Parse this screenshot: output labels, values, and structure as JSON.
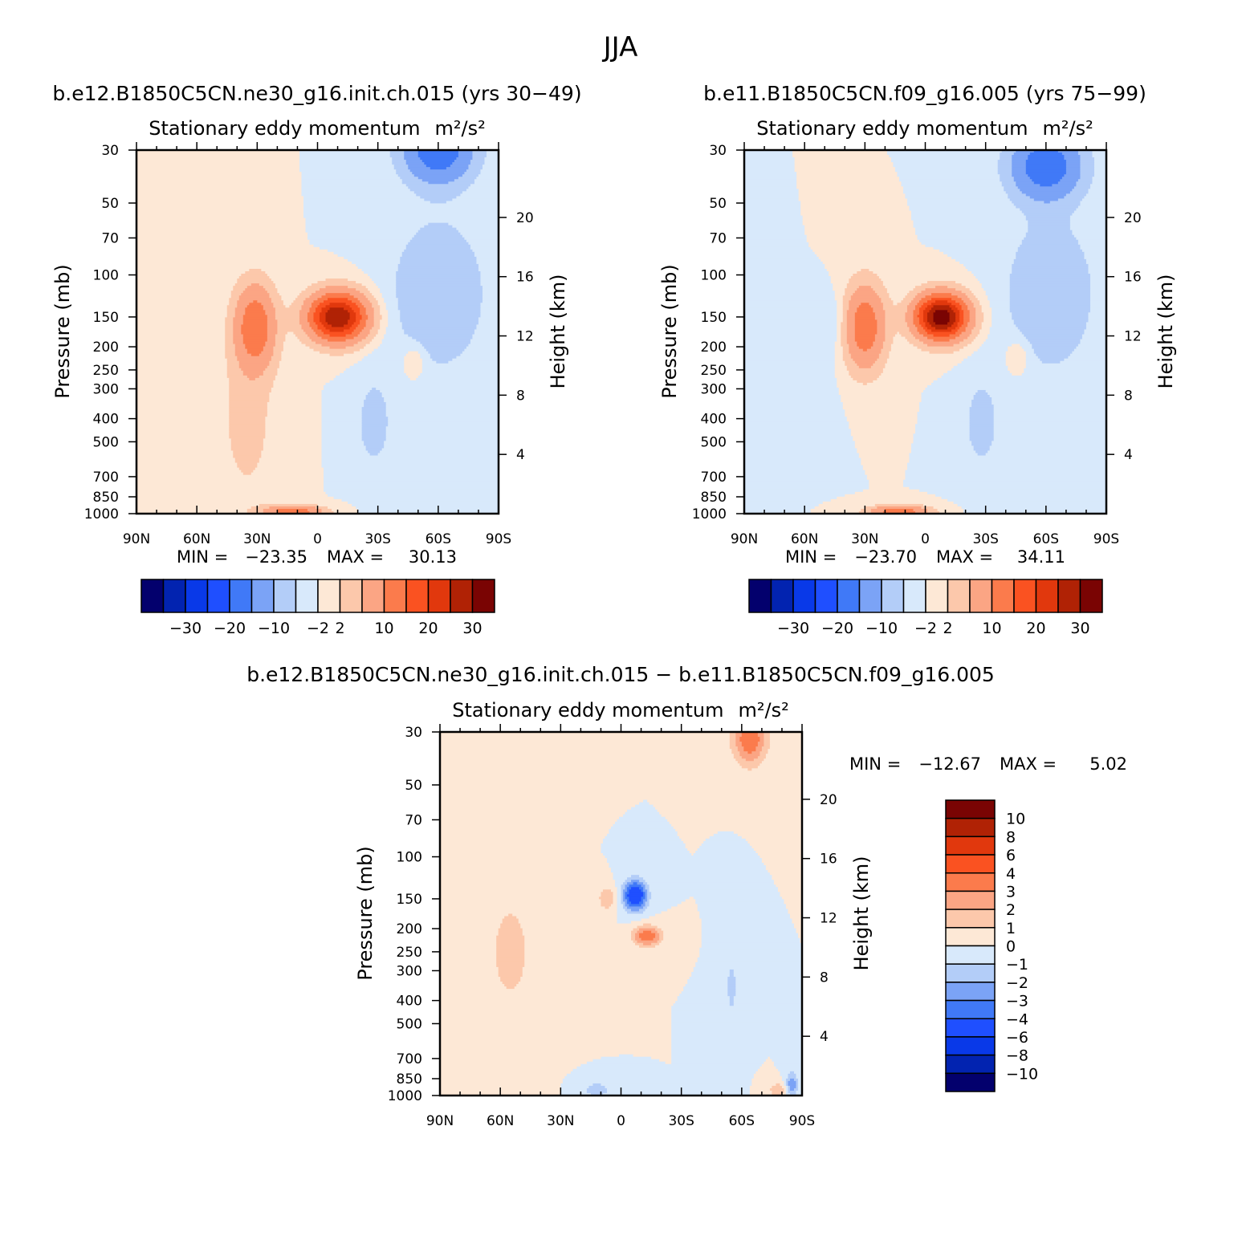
{
  "page": {
    "title": "JJA"
  },
  "chart_data": [
    {
      "type": "heatmap",
      "panel": "a",
      "case_title": "b.e12.B1850C5CN.ne30_g16.init.ch.015 (yrs 30−49)",
      "subtitle": "Stationary eddy momentum",
      "units": "m²/s²",
      "ylabel": "Pressure (mb)",
      "ylabel_right": "Height (km)",
      "x_ticks": [
        "90N",
        "60N",
        "30N",
        "0",
        "30S",
        "60S",
        "90S"
      ],
      "x_range": [
        90,
        -90
      ],
      "y_ticks": [
        "30",
        "50",
        "70",
        "100",
        "150",
        "200",
        "250",
        "300",
        "400",
        "500",
        "700",
        "850",
        "1000"
      ],
      "y_range_mb": [
        30,
        1000
      ],
      "y_scale": "log",
      "height_ticks": [
        "20",
        "16",
        "12",
        "8",
        "4"
      ],
      "min_label": "MIN =",
      "min_value": "−23.35",
      "max_label": "MAX =",
      "max_value": "30.13",
      "features": [
        {
          "lat": -10,
          "p": 150,
          "value": 30,
          "w": 10,
          "h": 0.16
        },
        {
          "lat": 31,
          "p": 165,
          "value": 14,
          "w": 7,
          "h": 0.28
        },
        {
          "lat": 12,
          "p": 980,
          "value": 14,
          "w": 10,
          "h": 0.04
        },
        {
          "lat": -60,
          "p": 30,
          "value": -14,
          "w": 12,
          "h": 0.22
        },
        {
          "lat": -60,
          "p": 120,
          "value": -5,
          "w": 16,
          "h": 0.5
        },
        {
          "lat": -28,
          "p": 420,
          "value": -3,
          "w": 7,
          "h": 0.35
        },
        {
          "lat": -48,
          "p": 230,
          "value": 3,
          "w": 4,
          "h": 0.12
        },
        {
          "lat": 35,
          "p": 400,
          "value": 3,
          "w": 10,
          "h": 0.6
        }
      ]
    },
    {
      "type": "heatmap",
      "panel": "b",
      "case_title": "b.e11.B1850C5CN.f09_g16.005 (yrs 75−99)",
      "subtitle": "Stationary eddy momentum",
      "units": "m²/s²",
      "ylabel": "Pressure (mb)",
      "ylabel_right": "Height (km)",
      "x_ticks": [
        "90N",
        "60N",
        "30N",
        "0",
        "30S",
        "60S",
        "90S"
      ],
      "x_range": [
        90,
        -90
      ],
      "y_ticks": [
        "30",
        "50",
        "70",
        "100",
        "150",
        "200",
        "250",
        "300",
        "400",
        "500",
        "700",
        "850",
        "1000"
      ],
      "y_range_mb": [
        30,
        1000
      ],
      "y_scale": "log",
      "height_ticks": [
        "20",
        "16",
        "12",
        "8",
        "4"
      ],
      "min_label": "MIN =",
      "min_value": "−23.70",
      "max_label": "MAX =",
      "max_value": "34.11",
      "features": [
        {
          "lat": -8,
          "p": 150,
          "value": 34,
          "w": 9,
          "h": 0.15
        },
        {
          "lat": 30,
          "p": 165,
          "value": 14,
          "w": 7,
          "h": 0.28
        },
        {
          "lat": 13,
          "p": 980,
          "value": 14,
          "w": 10,
          "h": 0.04
        },
        {
          "lat": -60,
          "p": 35,
          "value": -14,
          "w": 12,
          "h": 0.22
        },
        {
          "lat": -62,
          "p": 120,
          "value": -5,
          "w": 15,
          "h": 0.5
        },
        {
          "lat": -28,
          "p": 420,
          "value": -3,
          "w": 7,
          "h": 0.35
        },
        {
          "lat": -46,
          "p": 220,
          "value": 3,
          "w": 4,
          "h": 0.12
        },
        {
          "lat": 60,
          "p": 300,
          "value": -2,
          "w": 8,
          "h": 0.3
        },
        {
          "lat": 45,
          "p": 160,
          "value": -2,
          "w": 5,
          "h": 0.2
        }
      ]
    },
    {
      "type": "heatmap",
      "panel": "diff",
      "case_title": "b.e12.B1850C5CN.ne30_g16.init.ch.015 − b.e11.B1850C5CN.f09_g16.005",
      "subtitle": "Stationary eddy momentum",
      "units": "m²/s²",
      "ylabel": "Pressure (mb)",
      "ylabel_right": "Height (km)",
      "x_ticks": [
        "90N",
        "60N",
        "30N",
        "0",
        "30S",
        "60S",
        "90S"
      ],
      "x_range": [
        90,
        -90
      ],
      "y_ticks": [
        "30",
        "50",
        "70",
        "100",
        "150",
        "200",
        "250",
        "300",
        "400",
        "500",
        "700",
        "850",
        "1000"
      ],
      "y_range_mb": [
        30,
        1000
      ],
      "y_scale": "log",
      "height_ticks": [
        "20",
        "16",
        "12",
        "8",
        "4"
      ],
      "min_label": "MIN =",
      "min_value": "−12.67",
      "max_label": "MAX =",
      "max_value": "5.02",
      "features": [
        {
          "lat": -7,
          "p": 145,
          "value": -6,
          "w": 4,
          "h": 0.1
        },
        {
          "lat": -13,
          "p": 215,
          "value": 4,
          "w": 5,
          "h": 0.07
        },
        {
          "lat": 7,
          "p": 150,
          "value": 2,
          "w": 3,
          "h": 0.08
        },
        {
          "lat": -64,
          "p": 32,
          "value": 4,
          "w": 6,
          "h": 0.18
        },
        {
          "lat": 55,
          "p": 250,
          "value": 1.5,
          "w": 8,
          "h": 0.4
        },
        {
          "lat": -55,
          "p": 350,
          "value": -1.2,
          "w": 3,
          "h": 0.3
        },
        {
          "lat": -78,
          "p": 950,
          "value": 2,
          "w": 3,
          "h": 0.05
        },
        {
          "lat": -85,
          "p": 900,
          "value": -3,
          "w": 2,
          "h": 0.08
        },
        {
          "lat": 12,
          "p": 950,
          "value": -2,
          "w": 4,
          "h": 0.05
        }
      ]
    }
  ],
  "colorbar_main": {
    "colors": [
      "#03006d",
      "#0223b0",
      "#0939e8",
      "#1f4fff",
      "#4079f7",
      "#7ba3f6",
      "#b3cdf8",
      "#d8e9fb",
      "#fde8d6",
      "#fcc8ab",
      "#fba584",
      "#fb7b4c",
      "#fa5221",
      "#e1380d",
      "#b02205",
      "#7a0403"
    ],
    "labels": [
      "−30",
      "−20",
      "−10",
      "−2",
      "2",
      "10",
      "20",
      "30"
    ],
    "levels": [
      -30,
      -25,
      -20,
      -15,
      -10,
      -5,
      -2,
      0,
      2,
      5,
      10,
      15,
      20,
      25,
      30
    ]
  },
  "colorbar_diff": {
    "colors": [
      "#03006d",
      "#0223b0",
      "#0939e8",
      "#1f4fff",
      "#4079f7",
      "#7ba3f6",
      "#b3cdf8",
      "#d8e9fb",
      "#fde8d6",
      "#fcc8ab",
      "#fba584",
      "#fb7b4c",
      "#fa5221",
      "#e1380d",
      "#b02205",
      "#7a0403"
    ],
    "labels": [
      "10",
      "8",
      "6",
      "4",
      "3",
      "2",
      "1",
      "0",
      "−1",
      "−2",
      "−3",
      "−4",
      "−6",
      "−8",
      "−10"
    ],
    "levels": [
      -10,
      -8,
      -6,
      -4,
      -3,
      -2,
      -1,
      0,
      1,
      2,
      3,
      4,
      6,
      8,
      10
    ]
  }
}
